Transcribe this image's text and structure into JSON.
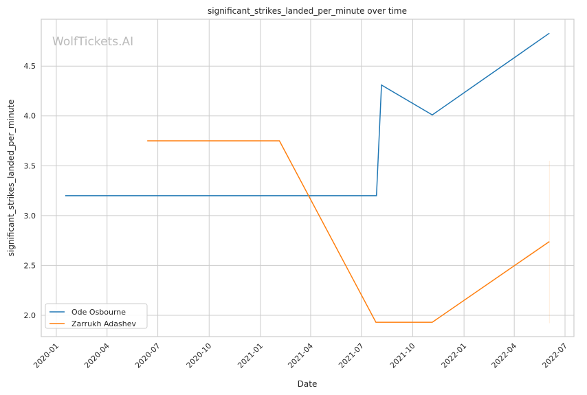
{
  "chart_data": {
    "type": "line",
    "title": "significant_strikes_landed_per_minute over time",
    "xlabel": "Date",
    "ylabel": "significant_strikes_landed_per_minute",
    "watermark": "WolfTickets.AI",
    "xlim": [
      "2019-12-05",
      "2022-07-17"
    ],
    "ylim": [
      1.786,
      4.97
    ],
    "x_ticks": [
      "2020-01-01",
      "2020-04-01",
      "2020-07-01",
      "2020-10-01",
      "2021-01-01",
      "2021-04-01",
      "2021-07-01",
      "2021-10-01",
      "2022-01-01",
      "2022-04-01",
      "2022-07-01"
    ],
    "x_tick_labels": [
      "2020-01",
      "2020-04",
      "2020-07",
      "2020-10",
      "2021-01",
      "2021-04",
      "2021-07",
      "2021-10",
      "2022-01",
      "2022-04",
      "2022-07"
    ],
    "y_ticks": [
      2.0,
      2.5,
      3.0,
      3.5,
      4.0,
      4.5
    ],
    "y_tick_labels": [
      "2.0",
      "2.5",
      "3.0",
      "3.5",
      "4.0",
      "4.5"
    ],
    "grid": true,
    "legend_position": "lower-left",
    "series": [
      {
        "name": "Ode Osbourne",
        "color": "#1f77b4",
        "x": [
          "2020-01-17",
          "2021-07-28",
          "2021-08-06",
          "2021-11-05",
          "2022-06-03"
        ],
        "y": [
          3.2,
          3.2,
          4.31,
          4.01,
          4.83
        ]
      },
      {
        "name": "Zarrukh Adashev",
        "color": "#ff7f0e",
        "x": [
          "2020-06-12",
          "2021-02-04",
          "2021-07-27",
          "2021-11-05",
          "2022-06-03"
        ],
        "y": [
          3.75,
          3.75,
          1.93,
          1.93,
          2.74
        ]
      }
    ]
  }
}
